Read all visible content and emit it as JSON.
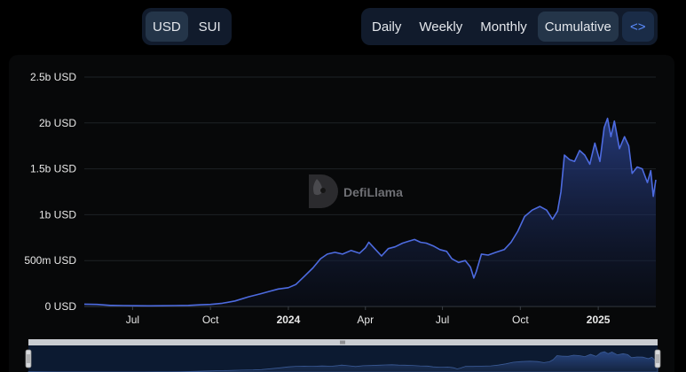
{
  "currency_toggle": {
    "options": [
      "USD",
      "SUI"
    ],
    "selected": "USD"
  },
  "period_toggle": {
    "options": [
      "Daily",
      "Weekly",
      "Monthly",
      "Cumulative"
    ],
    "selected": "Cumulative",
    "embed_icon": "code-brackets-icon",
    "embed_glyph": "<>"
  },
  "watermark": "DefiLlama",
  "colors": {
    "line": "#4d6be0",
    "accent": "#5b8cff",
    "background": "#000000"
  },
  "chart_data": {
    "type": "area",
    "title": "",
    "xlabel": "",
    "ylabel": "",
    "ylim": [
      0,
      2500000000
    ],
    "y_ticks": [
      {
        "value": 0,
        "label": "0 USD"
      },
      {
        "value": 500000000,
        "label": "500m USD"
      },
      {
        "value": 1000000000,
        "label": "1b USD"
      },
      {
        "value": 1500000000,
        "label": "1.5b USD"
      },
      {
        "value": 2000000000,
        "label": "2b USD"
      },
      {
        "value": 2500000000,
        "label": "2.5b USD"
      }
    ],
    "x_ticks": [
      {
        "date": "2023-07-01",
        "label": "Jul",
        "bold": false
      },
      {
        "date": "2023-10-01",
        "label": "Oct",
        "bold": false
      },
      {
        "date": "2024-01-01",
        "label": "2024",
        "bold": true
      },
      {
        "date": "2024-04-01",
        "label": "Apr",
        "bold": false
      },
      {
        "date": "2024-07-01",
        "label": "Jul",
        "bold": false
      },
      {
        "date": "2024-10-01",
        "label": "Oct",
        "bold": false
      },
      {
        "date": "2025-01-01",
        "label": "2025",
        "bold": true
      }
    ],
    "x_range": [
      "2023-05-05",
      "2025-03-10"
    ],
    "grid": true,
    "series": [
      {
        "points": [
          [
            "2023-05-05",
            25000000
          ],
          [
            "2023-05-20",
            22000000
          ],
          [
            "2023-06-05",
            12000000
          ],
          [
            "2023-06-20",
            10000000
          ],
          [
            "2023-07-05",
            8000000
          ],
          [
            "2023-07-20",
            7000000
          ],
          [
            "2023-08-05",
            8000000
          ],
          [
            "2023-08-20",
            10000000
          ],
          [
            "2023-09-05",
            12000000
          ],
          [
            "2023-09-20",
            18000000
          ],
          [
            "2023-10-01",
            22000000
          ],
          [
            "2023-10-15",
            35000000
          ],
          [
            "2023-10-30",
            60000000
          ],
          [
            "2023-11-15",
            105000000
          ],
          [
            "2023-11-30",
            140000000
          ],
          [
            "2023-12-10",
            165000000
          ],
          [
            "2023-12-20",
            190000000
          ],
          [
            "2024-01-01",
            205000000
          ],
          [
            "2024-01-10",
            240000000
          ],
          [
            "2024-01-20",
            330000000
          ],
          [
            "2024-01-30",
            420000000
          ],
          [
            "2024-02-08",
            520000000
          ],
          [
            "2024-02-16",
            570000000
          ],
          [
            "2024-02-25",
            590000000
          ],
          [
            "2024-03-05",
            570000000
          ],
          [
            "2024-03-15",
            610000000
          ],
          [
            "2024-03-25",
            580000000
          ],
          [
            "2024-04-01",
            640000000
          ],
          [
            "2024-04-05",
            700000000
          ],
          [
            "2024-04-12",
            630000000
          ],
          [
            "2024-04-20",
            550000000
          ],
          [
            "2024-04-28",
            630000000
          ],
          [
            "2024-05-06",
            650000000
          ],
          [
            "2024-05-15",
            690000000
          ],
          [
            "2024-05-22",
            710000000
          ],
          [
            "2024-05-29",
            730000000
          ],
          [
            "2024-06-05",
            700000000
          ],
          [
            "2024-06-12",
            690000000
          ],
          [
            "2024-06-20",
            660000000
          ],
          [
            "2024-06-28",
            620000000
          ],
          [
            "2024-07-06",
            600000000
          ],
          [
            "2024-07-12",
            520000000
          ],
          [
            "2024-07-20",
            480000000
          ],
          [
            "2024-07-28",
            500000000
          ],
          [
            "2024-08-03",
            430000000
          ],
          [
            "2024-08-07",
            310000000
          ],
          [
            "2024-08-10",
            380000000
          ],
          [
            "2024-08-16",
            570000000
          ],
          [
            "2024-08-24",
            560000000
          ],
          [
            "2024-09-02",
            590000000
          ],
          [
            "2024-09-12",
            620000000
          ],
          [
            "2024-09-20",
            700000000
          ],
          [
            "2024-09-28",
            820000000
          ],
          [
            "2024-10-06",
            980000000
          ],
          [
            "2024-10-15",
            1050000000
          ],
          [
            "2024-10-24",
            1090000000
          ],
          [
            "2024-11-01",
            1050000000
          ],
          [
            "2024-11-08",
            950000000
          ],
          [
            "2024-11-14",
            1040000000
          ],
          [
            "2024-11-18",
            1250000000
          ],
          [
            "2024-11-22",
            1650000000
          ],
          [
            "2024-11-28",
            1600000000
          ],
          [
            "2024-12-04",
            1580000000
          ],
          [
            "2024-12-10",
            1700000000
          ],
          [
            "2024-12-16",
            1650000000
          ],
          [
            "2024-12-22",
            1550000000
          ],
          [
            "2024-12-28",
            1780000000
          ],
          [
            "2025-01-03",
            1580000000
          ],
          [
            "2025-01-08",
            1950000000
          ],
          [
            "2025-01-12",
            2050000000
          ],
          [
            "2025-01-16",
            1850000000
          ],
          [
            "2025-01-20",
            2020000000
          ],
          [
            "2025-01-26",
            1720000000
          ],
          [
            "2025-02-01",
            1850000000
          ],
          [
            "2025-02-06",
            1750000000
          ],
          [
            "2025-02-10",
            1450000000
          ],
          [
            "2025-02-16",
            1520000000
          ],
          [
            "2025-02-22",
            1500000000
          ],
          [
            "2025-02-28",
            1350000000
          ],
          [
            "2025-03-04",
            1480000000
          ],
          [
            "2025-03-07",
            1200000000
          ],
          [
            "2025-03-10",
            1380000000
          ]
        ]
      }
    ]
  }
}
